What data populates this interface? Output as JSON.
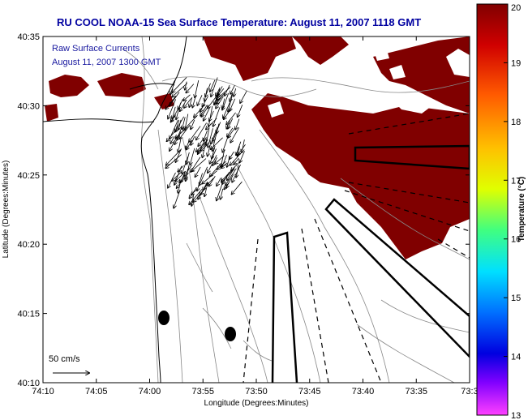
{
  "title": "RU COOL  NOAA-15  Sea Surface Temperature:  August 11, 2007 1118 GMT",
  "legend": {
    "line1": "Raw Surface Currents",
    "line2": "August 11, 2007 1300 GMT"
  },
  "scale_label": "50 cm/s",
  "xaxis": {
    "label": "Longitude (Degrees:Minutes)",
    "ticks": [
      "74:10",
      "74:05",
      "74:00",
      "73:55",
      "73:50",
      "73:45",
      "73:40",
      "73:35",
      "73:3"
    ]
  },
  "yaxis": {
    "label": "Latitude (Degrees:Minutes)",
    "ticks": [
      "40:35",
      "40:30",
      "40:25",
      "40:20",
      "40:15",
      "40:10"
    ]
  },
  "colorbar": {
    "label": "Temperature (°C)",
    "ticks": [
      "20",
      "19",
      "18",
      "17",
      "16",
      "15",
      "14",
      "13"
    ],
    "min": 13,
    "max": 20
  },
  "colors": {
    "sst_dark_red": "#800000",
    "title_blue": "#0000a0",
    "legend_blue": "#1a1aa0"
  }
}
